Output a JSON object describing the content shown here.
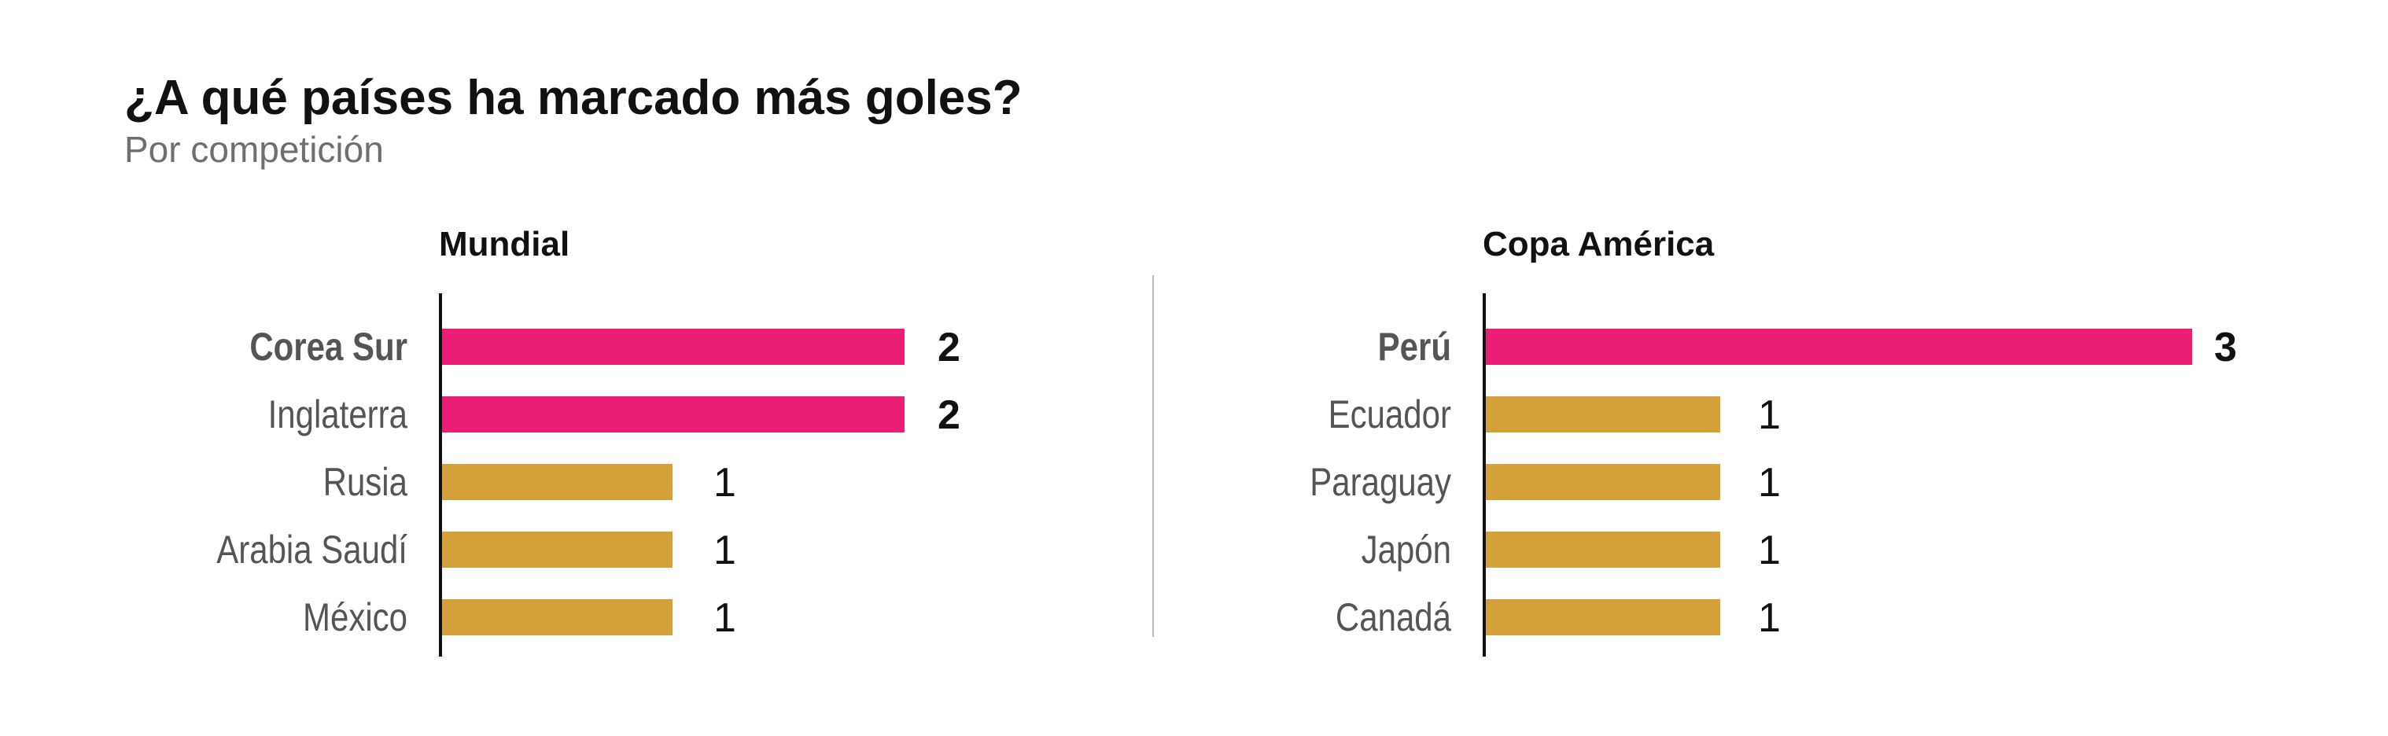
{
  "title": "¿A qué países ha marcado más goles?",
  "subtitle": "Por competición",
  "colors": {
    "highlight": "#E91E74",
    "regular": "#D4A03A",
    "axis": "#111111",
    "divider": "#bbbbbb",
    "highlight_label": "#555555",
    "regular_label": "#555555",
    "value_text": "#111111"
  },
  "chart_data": [
    {
      "type": "bar",
      "orientation": "horizontal",
      "title": "Mundial",
      "categories": [
        "Corea Sur",
        "Inglaterra",
        "Rusia",
        "Arabia Saudí",
        "México"
      ],
      "values": [
        2,
        2,
        1,
        1,
        1
      ],
      "highlighted": [
        true,
        true,
        false,
        false,
        false
      ],
      "bold_labels": [
        true,
        false,
        false,
        false,
        false
      ],
      "xlim": [
        0,
        3
      ]
    },
    {
      "type": "bar",
      "orientation": "horizontal",
      "title": "Copa América",
      "categories": [
        "Perú",
        "Ecuador",
        "Paraguay",
        "Japón",
        "Canadá"
      ],
      "values": [
        3,
        1,
        1,
        1,
        1
      ],
      "highlighted": [
        true,
        false,
        false,
        false,
        false
      ],
      "bold_labels": [
        true,
        false,
        false,
        false,
        false
      ],
      "xlim": [
        0,
        3
      ]
    }
  ]
}
